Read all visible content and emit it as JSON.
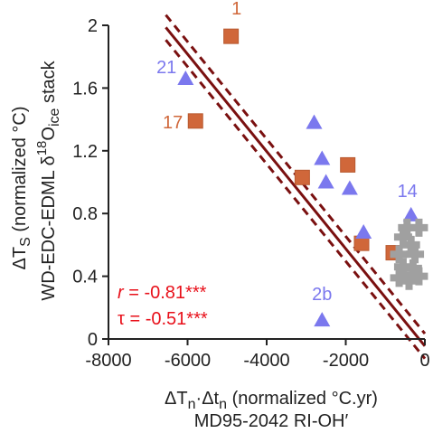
{
  "chart_data": {
    "type": "scatter",
    "xlim": [
      -8000,
      0
    ],
    "ylim": [
      0,
      2
    ],
    "xticks": [
      "-8000",
      "-6000",
      "-4000",
      "-2000",
      "0"
    ],
    "yticks": [
      "0",
      "0.4",
      "0.8",
      "1.2",
      "1.6",
      "2"
    ],
    "xlabel": {
      "line1_prefix": "ΔT",
      "line1_sub1": "n",
      "line1_mid": "·Δt",
      "line1_sub2": "n",
      "line1_suffix": " (normalized °C.yr)",
      "line2": "MD95-2042 RI-OH′"
    },
    "ylabel": {
      "line1_prefix": "ΔT",
      "line1_sub": "S",
      "line1_suffix": " (normalized °C)",
      "line2_prefix": "WD-EDC-EDML δ",
      "line2_sup": "18",
      "line2_mid": "O",
      "line2_sub": "ice",
      "line2_suffix": " stack"
    },
    "colors": {
      "square": "#d0673a",
      "square_edge": "#b85a30",
      "triangle": "#7b78ee",
      "cross": "#a0a0a0",
      "fit_line": "#7a1010",
      "stats_text": "#e8101a",
      "axis": "#222222"
    },
    "fit": {
      "slope": -0.0003102,
      "intercept": -0.045,
      "ci_upper": {
        "slope": -0.0003102,
        "intercept": 0.034
      },
      "ci_lower": {
        "slope": -0.0003102,
        "intercept": -0.125
      },
      "x_range": [
        -6550,
        0
      ]
    },
    "series": [
      {
        "marker": "square",
        "points": [
          {
            "x": -4900,
            "y": 1.93,
            "label": "1"
          },
          {
            "x": -5800,
            "y": 1.39,
            "label": "17"
          },
          {
            "x": -3100,
            "y": 1.03
          },
          {
            "x": -1950,
            "y": 1.11
          },
          {
            "x": -1600,
            "y": 0.61
          },
          {
            "x": -800,
            "y": 0.55
          }
        ]
      },
      {
        "marker": "triangle",
        "points": [
          {
            "x": -6050,
            "y": 1.66,
            "label": "21"
          },
          {
            "x": -2800,
            "y": 1.38
          },
          {
            "x": -2600,
            "y": 1.15
          },
          {
            "x": -2500,
            "y": 1.0
          },
          {
            "x": -1900,
            "y": 0.96
          },
          {
            "x": -1550,
            "y": 0.68
          },
          {
            "x": -350,
            "y": 0.79,
            "label": "14"
          },
          {
            "x": -2600,
            "y": 0.12,
            "label": "2b"
          }
        ]
      },
      {
        "marker": "cross",
        "points": [
          {
            "x": -450,
            "y": 0.71
          },
          {
            "x": -150,
            "y": 0.71
          },
          {
            "x": -550,
            "y": 0.65
          },
          {
            "x": -350,
            "y": 0.6
          },
          {
            "x": -650,
            "y": 0.54
          },
          {
            "x": -250,
            "y": 0.54
          },
          {
            "x": -550,
            "y": 0.46
          },
          {
            "x": -300,
            "y": 0.45
          },
          {
            "x": -650,
            "y": 0.39
          },
          {
            "x": -150,
            "y": 0.4
          },
          {
            "x": -400,
            "y": 0.37
          }
        ]
      }
    ],
    "stats": {
      "r_symbol": "r",
      "r_value": " = -0.81***",
      "tau_line": "τ = -0.51***"
    }
  }
}
